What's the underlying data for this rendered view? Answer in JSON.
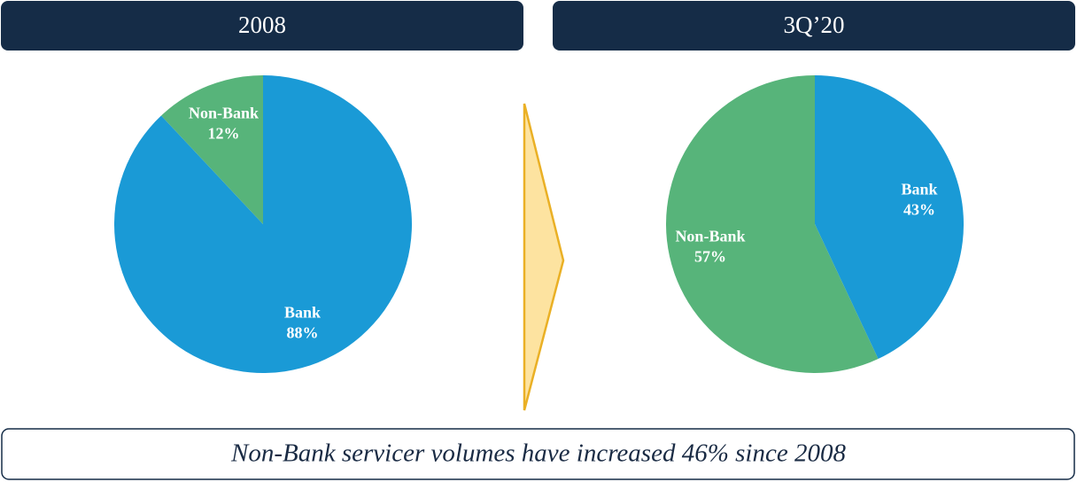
{
  "chart_data": [
    {
      "type": "pie",
      "title": "2008",
      "categories": [
        "Bank",
        "Non-Bank"
      ],
      "values": [
        88,
        12
      ],
      "value_labels": [
        "88%",
        "12%"
      ],
      "colors": [
        "#1a9ad6",
        "#57b47a"
      ]
    },
    {
      "type": "pie",
      "title": "3Q’20",
      "categories": [
        "Bank",
        "Non-Bank"
      ],
      "values": [
        43,
        57
      ],
      "value_labels": [
        "43%",
        "57%"
      ],
      "colors": [
        "#1a9ad6",
        "#57b47a"
      ]
    }
  ],
  "footnote": "Non-Bank servicer volumes have increased 46% since 2008"
}
